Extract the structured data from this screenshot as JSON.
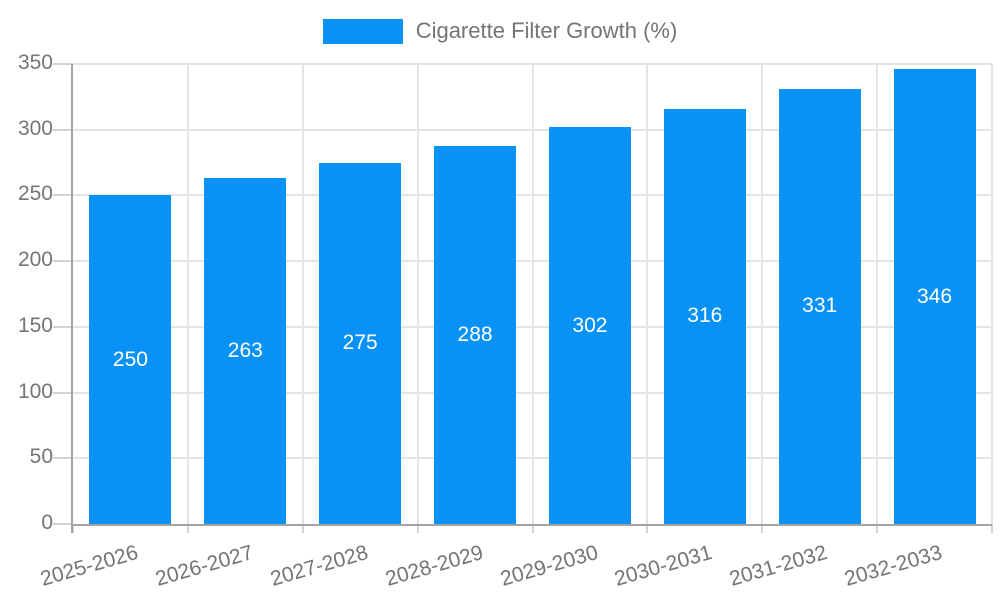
{
  "legend": {
    "label": "Cigarette Filter Growth (%)",
    "swatch_color": "#0992f5"
  },
  "chart_data": {
    "type": "bar",
    "title": "Cigarette Filter Growth (%)",
    "categories": [
      "2025-2026",
      "2026-2027",
      "2027-2028",
      "2028-2029",
      "2029-2030",
      "2030-2031",
      "2031-2032",
      "2032-2033"
    ],
    "values": [
      250,
      263,
      275,
      288,
      302,
      316,
      331,
      346
    ],
    "xlabel": "",
    "ylabel": "",
    "ylim": [
      0,
      350
    ],
    "y_ticks": [
      0,
      50,
      100,
      150,
      200,
      250,
      300,
      350
    ],
    "grid": true,
    "legend_position": "top-center",
    "bar_color": "#0992f5",
    "value_label_color": "#ffffff",
    "value_label_position": "inside-middle",
    "axis_text_color": "#757575"
  }
}
